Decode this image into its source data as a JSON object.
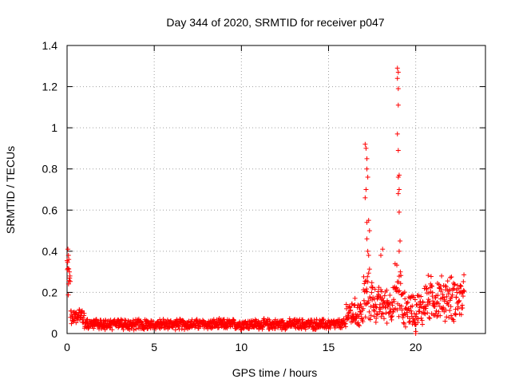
{
  "chart_data": {
    "type": "scatter",
    "title": "Day 344 of 2020, SRMTID for receiver p047",
    "xlabel": "GPS time / hours",
    "ylabel": "SRMTID / TECUs",
    "xlim": [
      0,
      24
    ],
    "ylim": [
      0,
      1.4
    ],
    "xticks": [
      0,
      5,
      10,
      15,
      20
    ],
    "xtick_labels": [
      "0",
      "5",
      "10",
      "15",
      "20"
    ],
    "yticks": [
      0,
      0.2,
      0.4,
      0.6,
      0.8,
      1.0,
      1.2,
      1.4
    ],
    "ytick_labels": [
      "0",
      "0.2",
      "0.4",
      "0.6",
      "0.8",
      "1",
      "1.2",
      "1.4"
    ],
    "grid": true,
    "marker": "+",
    "series": [
      {
        "name": "SRMTID",
        "color": "#ff0000",
        "segments": [
          {
            "x_start": 0.0,
            "x_end": 0.2,
            "baseline": 0.3,
            "spread": 0.12
          },
          {
            "x_start": 0.2,
            "x_end": 1.0,
            "baseline": 0.08,
            "spread": 0.05
          },
          {
            "x_start": 1.0,
            "x_end": 16.0,
            "baseline": 0.045,
            "spread": 0.03
          },
          {
            "x_start": 16.0,
            "x_end": 17.0,
            "baseline": 0.1,
            "spread": 0.08
          },
          {
            "x_start": 17.0,
            "x_end": 17.6,
            "baseline": 0.18,
            "spread": 0.15
          },
          {
            "x_start": 17.6,
            "x_end": 18.8,
            "baseline": 0.14,
            "spread": 0.1
          },
          {
            "x_start": 18.8,
            "x_end": 19.2,
            "baseline": 0.2,
            "spread": 0.18
          },
          {
            "x_start": 19.2,
            "x_end": 20.5,
            "baseline": 0.12,
            "spread": 0.1
          },
          {
            "x_start": 20.5,
            "x_end": 22.8,
            "baseline": 0.17,
            "spread": 0.13
          }
        ],
        "spikes": [
          {
            "x": 0.05,
            "y": 0.41
          },
          {
            "x": 0.08,
            "y": 0.38
          },
          {
            "x": 0.1,
            "y": 0.36
          },
          {
            "x": 17.1,
            "y": 0.92
          },
          {
            "x": 17.15,
            "y": 0.9
          },
          {
            "x": 17.2,
            "y": 0.85
          },
          {
            "x": 17.2,
            "y": 0.8
          },
          {
            "x": 17.25,
            "y": 0.76
          },
          {
            "x": 17.15,
            "y": 0.7
          },
          {
            "x": 17.1,
            "y": 0.66
          },
          {
            "x": 17.3,
            "y": 0.55
          },
          {
            "x": 17.2,
            "y": 0.54
          },
          {
            "x": 17.35,
            "y": 0.5
          },
          {
            "x": 17.2,
            "y": 0.46
          },
          {
            "x": 17.25,
            "y": 0.4
          },
          {
            "x": 17.3,
            "y": 0.38
          },
          {
            "x": 18.95,
            "y": 1.29
          },
          {
            "x": 19.0,
            "y": 1.27
          },
          {
            "x": 18.95,
            "y": 1.24
          },
          {
            "x": 19.0,
            "y": 1.19
          },
          {
            "x": 19.0,
            "y": 1.11
          },
          {
            "x": 18.95,
            "y": 0.97
          },
          {
            "x": 19.0,
            "y": 0.89
          },
          {
            "x": 19.05,
            "y": 0.77
          },
          {
            "x": 19.0,
            "y": 0.76
          },
          {
            "x": 19.05,
            "y": 0.7
          },
          {
            "x": 19.0,
            "y": 0.68
          },
          {
            "x": 19.05,
            "y": 0.59
          },
          {
            "x": 19.1,
            "y": 0.45
          },
          {
            "x": 19.05,
            "y": 0.4
          },
          {
            "x": 18.1,
            "y": 0.41
          },
          {
            "x": 18.0,
            "y": 0.38
          },
          {
            "x": 20.0,
            "y": 0.01
          },
          {
            "x": 20.0,
            "y": 0.0
          }
        ]
      }
    ]
  }
}
